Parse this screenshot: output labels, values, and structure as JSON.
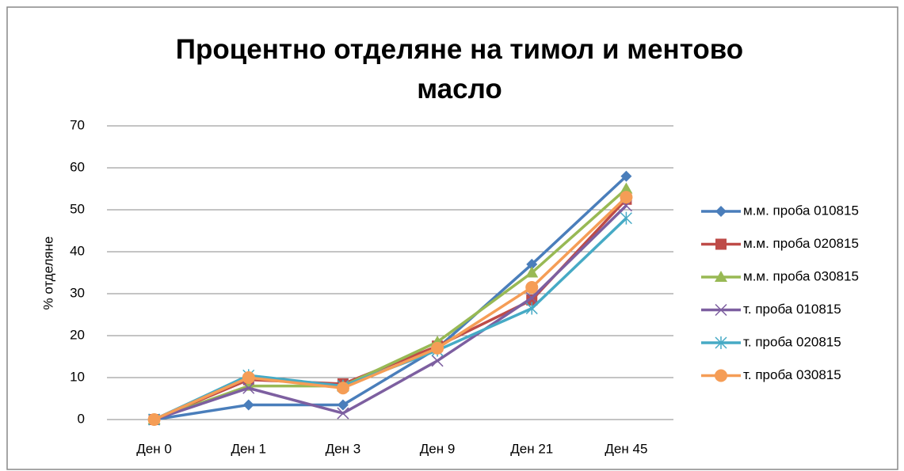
{
  "chart_data": {
    "type": "line",
    "title": "Процентно отделяне на тимол и ментово масло",
    "y_label": "% отделяне",
    "categories": [
      "Ден 0",
      "Ден 1",
      "Ден 3",
      "Ден 9",
      "Ден 21",
      "Ден 45"
    ],
    "series": [
      {
        "name": "м.м. проба 010815",
        "color": "#4a7ebb",
        "marker": "diamond",
        "values": [
          0,
          3.5,
          3.5,
          17,
          37,
          58
        ]
      },
      {
        "name": "м.м. проба 020815",
        "color": "#be4b48",
        "marker": "square",
        "values": [
          0,
          9.5,
          8.5,
          17.5,
          28.5,
          52.5
        ]
      },
      {
        "name": "м.м. проба 030815",
        "color": "#98b954",
        "marker": "triangle",
        "values": [
          0,
          8,
          8,
          18.5,
          35,
          55
        ]
      },
      {
        "name": "т. проба 010815",
        "color": "#7d5fa0",
        "marker": "x",
        "values": [
          0,
          7.5,
          1.5,
          14,
          29,
          51
        ]
      },
      {
        "name": "т. проба 020815",
        "color": "#46aac5",
        "marker": "star",
        "values": [
          0,
          10.5,
          8,
          16.5,
          26.5,
          48
        ]
      },
      {
        "name": "т. проба 030815",
        "color": "#f59d56",
        "marker": "circle",
        "values": [
          0,
          10,
          7.5,
          17,
          31.5,
          53
        ]
      }
    ],
    "ylim": [
      0,
      70
    ],
    "yticks": [
      0,
      10,
      20,
      30,
      40,
      50,
      60,
      70
    ],
    "grid": true,
    "legend": "right"
  }
}
